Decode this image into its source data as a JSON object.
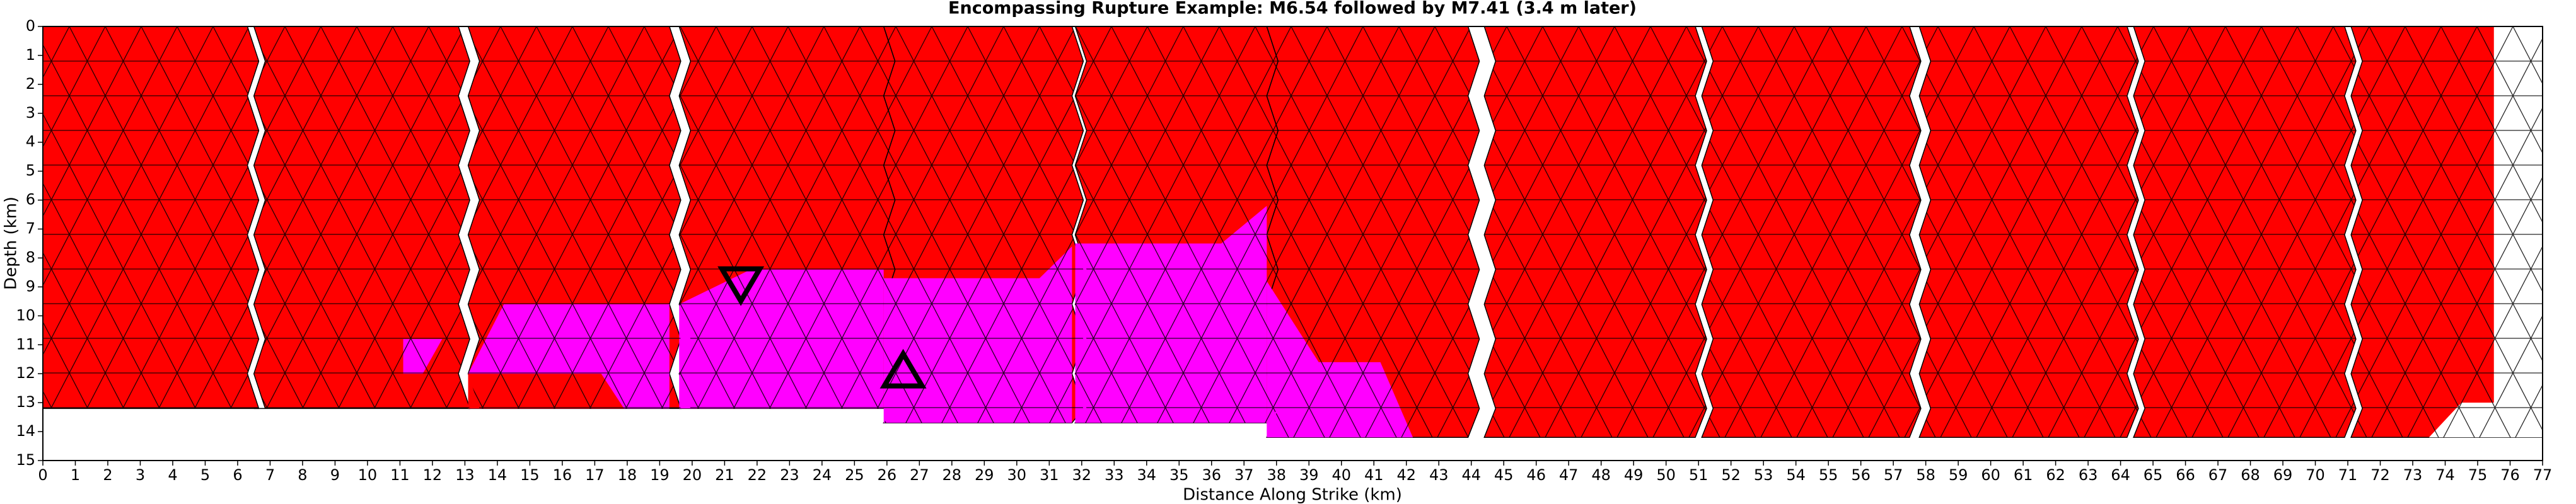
{
  "chart_data": {
    "type": "fault-mesh",
    "title": "Encompassing Rupture Example: M6.54 followed by M7.41 (3.4 m later)",
    "x_label": "Distance Along Strike (km)",
    "y_label": "Depth (km)",
    "xlim": [
      0,
      77
    ],
    "xticks": [
      0,
      1,
      2,
      3,
      4,
      5,
      6,
      7,
      8,
      9,
      10,
      11,
      12,
      13,
      14,
      15,
      16,
      17,
      18,
      19,
      20,
      21,
      22,
      23,
      24,
      25,
      26,
      27,
      28,
      29,
      30,
      31,
      32,
      33,
      34,
      35,
      36,
      37,
      38,
      39,
      40,
      41,
      42,
      43,
      44,
      45,
      46,
      47,
      48,
      49,
      50,
      51,
      52,
      53,
      54,
      55,
      56,
      57,
      58,
      59,
      60,
      61,
      62,
      63,
      64,
      65,
      66,
      67,
      68,
      69,
      70,
      71,
      72,
      73,
      74,
      75,
      76,
      77
    ],
    "ylim": [
      15,
      0
    ],
    "yticks": [
      0,
      1,
      2,
      3,
      4,
      5,
      6,
      7,
      8,
      9,
      10,
      11,
      12,
      13,
      14,
      15
    ],
    "segments": [
      {
        "color": "#ff0000",
        "x": [
          0,
          6.3
        ],
        "depth": [
          0,
          13.2
        ]
      },
      {
        "color": "#ff0000",
        "x": [
          6.5,
          12.8
        ],
        "depth": [
          0,
          13.2
        ]
      },
      {
        "color": "#ff0000",
        "x": [
          13.1,
          19.3
        ],
        "depth": [
          0,
          13.2
        ]
      },
      {
        "color": "#ff0000",
        "x": [
          19.6,
          25.9
        ],
        "depth": [
          0,
          13.2
        ]
      },
      {
        "color": "#ff0000",
        "x": [
          25.9,
          31.7
        ],
        "depth": [
          0,
          13.7
        ]
      },
      {
        "color": "#ff0000",
        "x": [
          31.8,
          37.7
        ],
        "depth": [
          0,
          13.7
        ]
      },
      {
        "color": "#ff0000",
        "x": [
          37.7,
          43.9
        ],
        "depth": [
          0,
          14.2
        ]
      },
      {
        "color": "#ff0000",
        "x": [
          44.4,
          50.9
        ],
        "depth": [
          0,
          14.2
        ]
      },
      {
        "color": "#ff0000",
        "x": [
          51.1,
          57.5
        ],
        "depth": [
          0,
          14.2
        ]
      },
      {
        "color": "#ff0000",
        "x": [
          57.8,
          64.2
        ],
        "depth": [
          0,
          14.2
        ]
      },
      {
        "color": "#ff0000",
        "x": [
          64.4,
          70.9
        ],
        "depth": [
          0,
          14.2
        ]
      },
      {
        "color": "#ff0000",
        "x": [
          71.1,
          77
        ],
        "depth": [
          0,
          14.2
        ]
      }
    ],
    "patches": [
      {
        "color": "#ff00ff",
        "x": [
          11.1,
          12.3,
          11.7,
          11.1
        ],
        "depth": [
          10.8,
          10.8,
          12,
          12
        ]
      },
      {
        "color": "#ff00ff",
        "x": [
          14.2,
          19.3,
          19.3,
          13.1,
          13.1
        ],
        "depth": [
          9.6,
          9.6,
          13.2,
          13.2,
          12
        ]
      },
      {
        "color": "#ff0000",
        "x": [
          13.1,
          17.2,
          17.9,
          13.1
        ],
        "depth": [
          12,
          12,
          13.2,
          13.2
        ]
      },
      {
        "color": "#ff00ff",
        "x": [
          21.8,
          25.9,
          25.9,
          19.6,
          19.6
        ],
        "depth": [
          8.4,
          8.4,
          13.2,
          13.2,
          9.6
        ]
      },
      {
        "color": "#ff00ff",
        "x": [
          25.9,
          30.7,
          31.7,
          31.7,
          25.9
        ],
        "depth": [
          8.7,
          8.7,
          7.6,
          13.7,
          13.7
        ]
      },
      {
        "color": "#ff00ff",
        "x": [
          31.8,
          36.3,
          37.7,
          37.7,
          31.8
        ],
        "depth": [
          7.5,
          7.5,
          6.2,
          13.7,
          13.7
        ]
      },
      {
        "color": "#ff00ff",
        "x": [
          37.7,
          39.3,
          41.2,
          42.2,
          37.7
        ],
        "depth": [
          8.8,
          11.6,
          11.6,
          14.2,
          14.2
        ]
      },
      {
        "color": "#ffffff",
        "x": [
          75.5,
          77,
          77,
          73.5,
          74.5,
          75.5
        ],
        "depth": [
          0,
          0,
          14.2,
          14.2,
          13,
          13
        ]
      }
    ],
    "markers": [
      {
        "shape": "down",
        "x": 21.5,
        "depth": 8.9
      },
      {
        "shape": "up",
        "x": 26.5,
        "depth": 11.9
      }
    ]
  }
}
